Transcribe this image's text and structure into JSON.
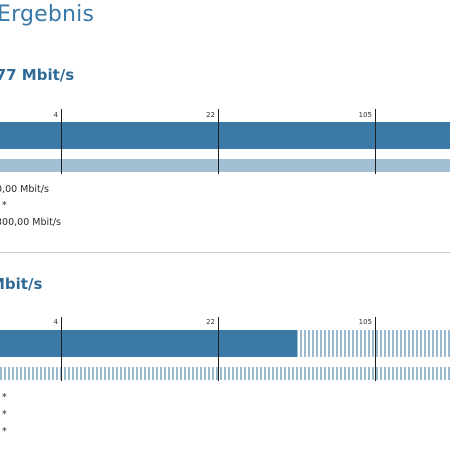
{
  "page": {
    "title": "Ergebnis"
  },
  "download": {
    "heading": ",77 Mbit/s",
    "ticks": [
      "4",
      "22",
      "105"
    ],
    "fill_fraction": 1.0,
    "lines": [
      "0,00 Mbit/s",
      ". *",
      "300,00 Mbit/s"
    ]
  },
  "upload": {
    "heading": "Mbit/s",
    "ticks": [
      "4",
      "22",
      "105"
    ],
    "fill_fraction": 0.66,
    "lines": [
      ". *",
      ". *",
      ". *"
    ]
  },
  "colors": {
    "title": "#3a7aa8",
    "bar_primary": "#3b79a7",
    "bar_secondary": "#a3bfd4",
    "bar_stripe": "#9bbad0",
    "divider": "#c9c9c9"
  }
}
